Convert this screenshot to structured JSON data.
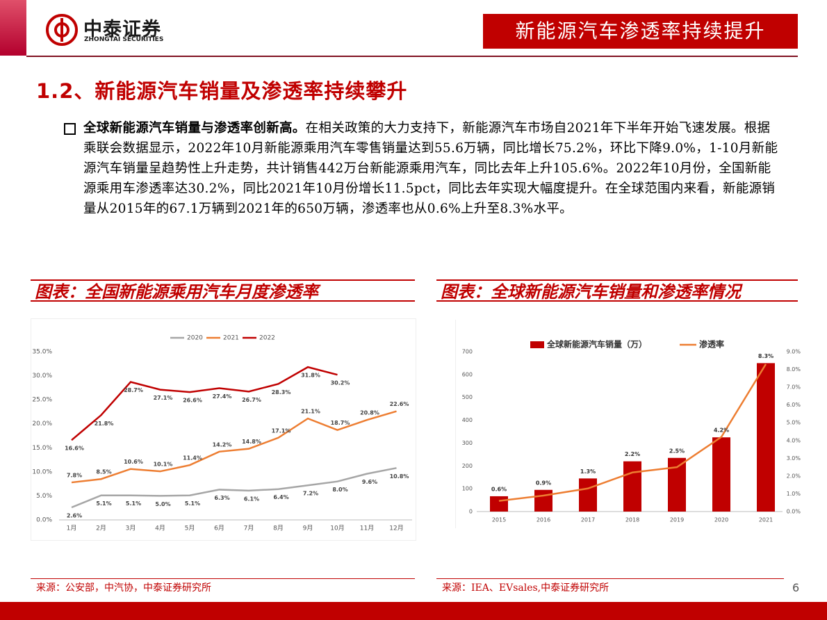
{
  "header": {
    "logo_cn": "中泰证券",
    "logo_en": "ZHONGTAI SECURITIES",
    "banner": "新能源汽车渗透率持续提升"
  },
  "section_title": "1.2、新能源汽车销量及渗透率持续攀升",
  "paragraph": {
    "lead": "全球新能源汽车销量与渗透率创新高。",
    "body": "在相关政策的大力支持下，新能源汽车市场自2021年下半年开始飞速发展。根据乘联会数据显示，2022年10月新能源乘用汽车零售销量达到55.6万辆，同比增长75.2%，环比下降9.0%，1-10月新能源汽车销量呈趋势性上升走势，共计销售442万台新能源乘用汽车，同比去年上升105.6%。2022年10月份，全国新能源乘用车渗透率达30.2%，同比2021年10月份增长11.5pct，同比去年实现大幅度提升。在全球范围内来看，新能源销量从2015年的67.1万辆到2021年的650万辆，渗透率也从0.6%上升至8.3%水平。"
  },
  "page_number": "6",
  "chart_data": [
    {
      "type": "line",
      "caption": "图表：全国新能源乘用汽车月度渗透率",
      "source": "来源：公安部，中汽协，中泰证券研究所",
      "categories": [
        "1月",
        "2月",
        "3月",
        "4月",
        "5月",
        "6月",
        "7月",
        "8月",
        "9月",
        "10月",
        "11月",
        "12月"
      ],
      "series": [
        {
          "name": "2020",
          "color": "#a6a6a6",
          "values": [
            2.6,
            5.1,
            5.1,
            5.0,
            5.1,
            6.3,
            6.1,
            6.4,
            7.2,
            8.0,
            9.6,
            10.8
          ],
          "value_labels": [
            "2.6%",
            "5.1%",
            "5.1%",
            "5.0%",
            "5.1%",
            "6.3%",
            "6.1%",
            "6.4%",
            "7.2%",
            "8.0%",
            "9.6%",
            "10.8%"
          ]
        },
        {
          "name": "2021",
          "color": "#ed7d31",
          "values": [
            7.8,
            8.5,
            10.6,
            10.1,
            11.4,
            14.2,
            14.8,
            17.1,
            21.1,
            18.7,
            20.8,
            22.6
          ],
          "value_labels": [
            "7.8%",
            "8.5%",
            "10.6%",
            "10.1%",
            "11.4%",
            "14.2%",
            "14.8%",
            "17.1%",
            "21.1%",
            "18.7%",
            "20.8%",
            "22.6%"
          ]
        },
        {
          "name": "2022",
          "color": "#c00000",
          "values": [
            16.6,
            21.8,
            28.7,
            27.1,
            26.6,
            27.4,
            26.7,
            28.3,
            31.8,
            30.2,
            null,
            null
          ],
          "value_labels": [
            "16.6%",
            "21.8%",
            "28.7%",
            "27.1%",
            "26.6%",
            "27.4%",
            "26.7%",
            "28.3%",
            "31.8%",
            "30.2%",
            null,
            null
          ]
        }
      ],
      "ylim": [
        0,
        35
      ],
      "yticks": [
        {
          "value": 0,
          "label": "0.0%"
        },
        {
          "value": 5,
          "label": "5.0%"
        },
        {
          "value": 10,
          "label": "10.0%"
        },
        {
          "value": 15,
          "label": "15.0%"
        },
        {
          "value": 20,
          "label": "20.0%"
        },
        {
          "value": 25,
          "label": "25.0%"
        },
        {
          "value": 30,
          "label": "30.0%"
        },
        {
          "value": 35,
          "label": "35.0%"
        }
      ],
      "grid": false,
      "legend": "top"
    },
    {
      "type": "bar",
      "caption": "图表：全球新能源汽车销量和渗透率情况",
      "source": "来源：IEA、EVsales,中泰证券研究所",
      "categories": [
        "2015",
        "2016",
        "2017",
        "2018",
        "2019",
        "2020",
        "2021"
      ],
      "series": [
        {
          "name": "全球新能源汽车销量（万）",
          "type": "bar",
          "color": "#c00000",
          "values": [
            67.1,
            95,
            145,
            220,
            235,
            325,
            650
          ]
        },
        {
          "name": "渗透率",
          "type": "line",
          "axis": "y2",
          "color": "#ed7d31",
          "values": [
            0.6,
            0.9,
            1.3,
            2.2,
            2.5,
            4.2,
            8.3
          ],
          "value_labels": [
            "0.6%",
            "0.9%",
            "1.3%",
            "2.2%",
            "2.5%",
            "4.2%",
            "8.3%"
          ]
        }
      ],
      "ylim": [
        0,
        700
      ],
      "yticks": [
        0,
        100,
        200,
        300,
        400,
        500,
        600,
        700
      ],
      "y2lim": [
        0,
        9
      ],
      "y2ticks": [
        {
          "value": 0,
          "label": "0.0%"
        },
        {
          "value": 1,
          "label": "1.0%"
        },
        {
          "value": 2,
          "label": "2.0%"
        },
        {
          "value": 3,
          "label": "3.0%"
        },
        {
          "value": 4,
          "label": "4.0%"
        },
        {
          "value": 5,
          "label": "5.0%"
        },
        {
          "value": 6,
          "label": "6.0%"
        },
        {
          "value": 7,
          "label": "7.0%"
        },
        {
          "value": 8,
          "label": "8.0%"
        },
        {
          "value": 9,
          "label": "9.0%"
        }
      ],
      "grid": false,
      "legend": "top"
    }
  ]
}
